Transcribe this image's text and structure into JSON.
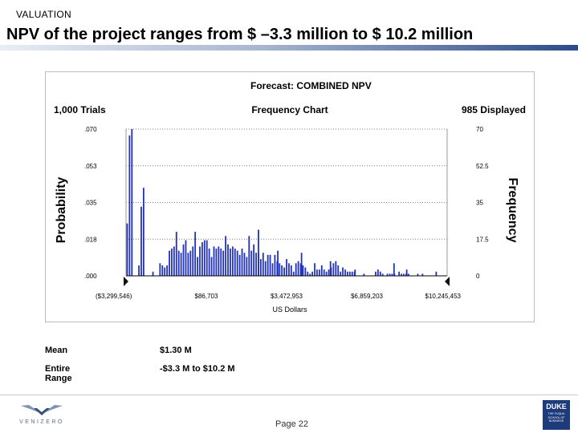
{
  "header": {
    "section_label": "VALUATION",
    "title": "NPV of the project ranges from $ –3.3 million to $ 10.2 million"
  },
  "colors": {
    "bar": "#2233bb",
    "marker": "#111111",
    "gridline": "#7f7f7f",
    "title_bar_dark": "#2c4c88"
  },
  "chart_data": {
    "type": "bar",
    "title": "Forecast: COMBINED NPV",
    "subtitle": "Frequency Chart",
    "trials_label": "1,000 Trials",
    "displayed_label": "985 Displayed",
    "xlabel": "US Dollars",
    "ylabel_left": "Probability",
    "ylabel_right": "Frequency",
    "xlim": [
      -3299546,
      10245453
    ],
    "ylim": [
      0,
      70
    ],
    "y_left_ticks": [
      {
        "value": 0,
        "label": ".000"
      },
      {
        "value": 17.5,
        "label": ".018"
      },
      {
        "value": 35,
        "label": ".035"
      },
      {
        "value": 52.5,
        "label": ".053"
      },
      {
        "value": 70,
        "label": ".070"
      }
    ],
    "y_right_ticks": [
      {
        "value": 0,
        "label": "0"
      },
      {
        "value": 17.5,
        "label": "17.5"
      },
      {
        "value": 35,
        "label": "35"
      },
      {
        "value": 52.5,
        "label": "52.5"
      },
      {
        "value": 70,
        "label": "70"
      }
    ],
    "x_ticks": [
      {
        "value": -3299546,
        "label": "($3,299,546)"
      },
      {
        "value": 86703,
        "label": "$86,703"
      },
      {
        "value": 3472953,
        "label": "$3,472,953"
      },
      {
        "value": 6859203,
        "label": "$6,859,203"
      },
      {
        "value": 10245453,
        "label": "$10,245,453"
      }
    ],
    "grid": true,
    "bin_count": 137,
    "frequencies": [
      25,
      67,
      70,
      0,
      0,
      5,
      33,
      42,
      0,
      0,
      0,
      2,
      0,
      0,
      6,
      5,
      4,
      5,
      12,
      13,
      14,
      21,
      12,
      11,
      15,
      17,
      11,
      12,
      14,
      21,
      9,
      14,
      16,
      17,
      17,
      13,
      9,
      14,
      13,
      14,
      13,
      12,
      19,
      15,
      13,
      14,
      13,
      12,
      10,
      13,
      11,
      9,
      19,
      12,
      15,
      11,
      11,
      8,
      11,
      7,
      10,
      10,
      6,
      10,
      7,
      6,
      5,
      4,
      8,
      6,
      5,
      2,
      6,
      7,
      6,
      5,
      4,
      2,
      1,
      2,
      6,
      3,
      3,
      5,
      3,
      2,
      3,
      4,
      6,
      7,
      5,
      2,
      4,
      3,
      2,
      2,
      2,
      2,
      0,
      0,
      0,
      1,
      0,
      0,
      0,
      0,
      2,
      3,
      2,
      1,
      0,
      1,
      1,
      1,
      1,
      0,
      2,
      1,
      1,
      1,
      1,
      0,
      0,
      0,
      1,
      0,
      1,
      0,
      0,
      0,
      0,
      0,
      0,
      0,
      0,
      0,
      0
    ],
    "extra_bars": [
      {
        "x": 2286000,
        "value": 22
      },
      {
        "x": 3102000,
        "value": 12
      },
      {
        "x": 4104000,
        "value": 11
      },
      {
        "x": 5325000,
        "value": 7
      },
      {
        "x": 6360000,
        "value": 3
      },
      {
        "x": 8005000,
        "value": 6
      },
      {
        "x": 8540000,
        "value": 3
      },
      {
        "x": 9785000,
        "value": 2
      }
    ]
  },
  "stats": {
    "mean_label": "Mean",
    "mean_value": "$1.30 M",
    "range_label": "Entire Range",
    "range_value": "-$3.3 M to $10.2 M"
  },
  "footer": {
    "left_logo_text": "VENIZERO",
    "page_label": "Page 22",
    "right_logo_main": "DUKE",
    "right_logo_sub": "THE FUQUA SCHOOL OF BUSINESS"
  }
}
